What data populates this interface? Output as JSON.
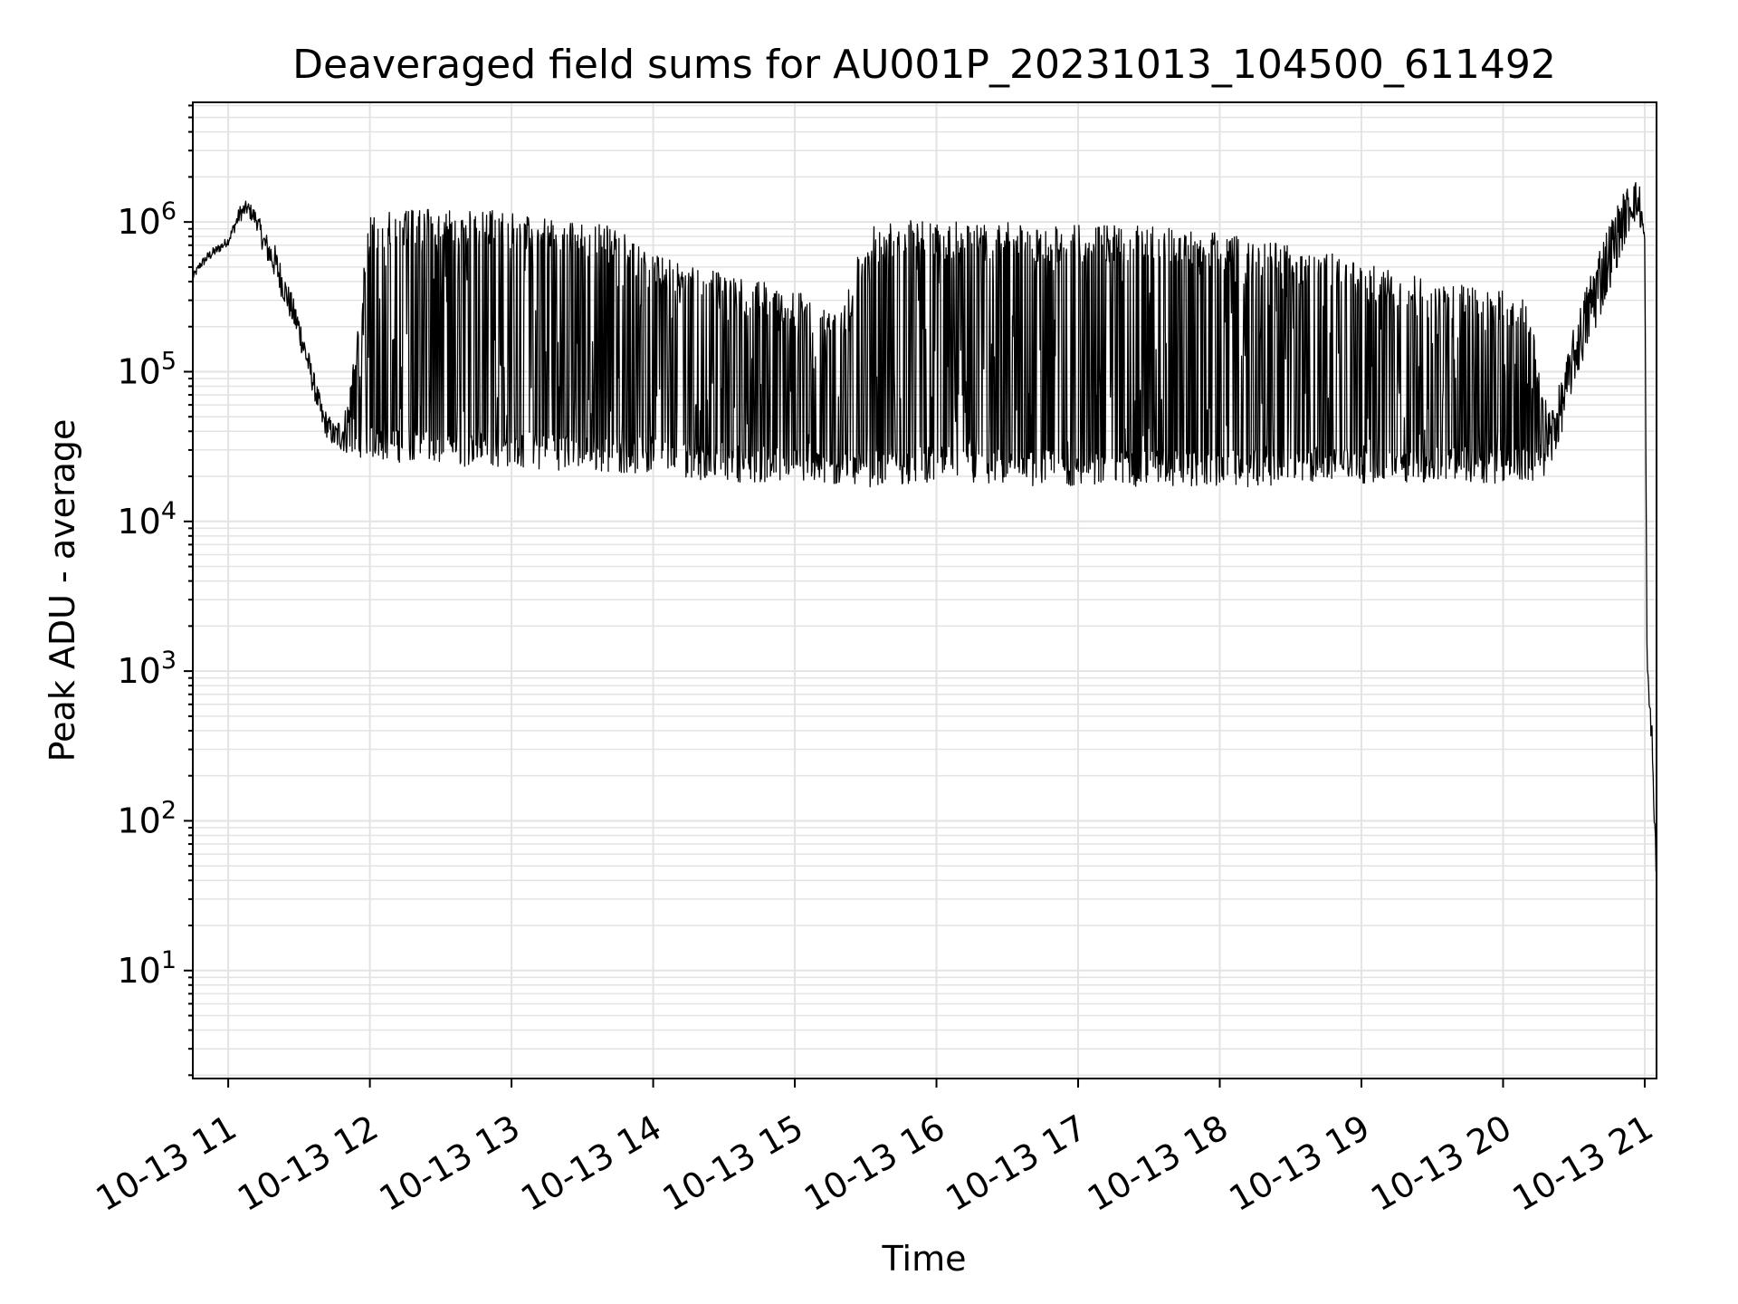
{
  "chart_data": {
    "type": "line",
    "title": "Deaveraged field sums for AU001P_20231013_104500_611492",
    "xlabel": "Time",
    "ylabel": "Peak ADU - average",
    "x_scale": "time",
    "y_scale": "log",
    "xlim": [
      "10-13 10:45",
      "10-13 21:05"
    ],
    "ylim": [
      1.9,
      6300000
    ],
    "x_ticks": [
      "10-13 11",
      "10-13 12",
      "10-13 13",
      "10-13 14",
      "10-13 15",
      "10-13 16",
      "10-13 17",
      "10-13 18",
      "10-13 19",
      "10-13 20",
      "10-13 21"
    ],
    "y_ticks": [
      {
        "base": "10",
        "exp": "1"
      },
      {
        "base": "10",
        "exp": "2"
      },
      {
        "base": "10",
        "exp": "3"
      },
      {
        "base": "10",
        "exp": "4"
      },
      {
        "base": "10",
        "exp": "5"
      },
      {
        "base": "10",
        "exp": "6"
      }
    ],
    "grid": true,
    "line_color": "#000000",
    "series": [
      {
        "x": [
          "10-13 10:45",
          "10-13 10:48",
          "10-13 10:52",
          "10-13 10:55",
          "10-13 11:00",
          "10-13 11:05",
          "10-13 11:08",
          "10-13 11:12",
          "10-13 11:15",
          "10-13 11:20",
          "10-13 11:25",
          "10-13 11:30",
          "10-13 11:35",
          "10-13 11:40",
          "10-13 11:45",
          "10-13 11:50",
          "10-13 12:00",
          "10-13 12:10",
          "10-13 12:20",
          "10-13 12:30",
          "10-13 12:40",
          "10-13 12:50",
          "10-13 13:00",
          "10-13 13:10",
          "10-13 13:20",
          "10-13 13:30",
          "10-13 13:40",
          "10-13 13:50",
          "10-13 14:00",
          "10-13 14:10",
          "10-13 14:20",
          "10-13 14:30",
          "10-13 14:40",
          "10-13 14:50",
          "10-13 15:00",
          "10-13 15:10",
          "10-13 15:20",
          "10-13 15:30",
          "10-13 15:40",
          "10-13 15:50",
          "10-13 16:00",
          "10-13 16:10",
          "10-13 16:20",
          "10-13 16:30",
          "10-13 16:40",
          "10-13 16:50",
          "10-13 17:00",
          "10-13 17:10",
          "10-13 17:20",
          "10-13 17:30",
          "10-13 17:40",
          "10-13 17:50",
          "10-13 18:00",
          "10-13 18:10",
          "10-13 18:20",
          "10-13 18:30",
          "10-13 18:40",
          "10-13 18:50",
          "10-13 19:00",
          "10-13 19:10",
          "10-13 19:20",
          "10-13 19:30",
          "10-13 19:40",
          "10-13 19:50",
          "10-13 20:00",
          "10-13 20:10",
          "10-13 20:20",
          "10-13 20:25",
          "10-13 20:30",
          "10-13 20:40",
          "10-13 20:50",
          "10-13 20:55",
          "10-13 20:58",
          "10-13 21:00",
          "10-13 21:01",
          "10-13 21:02",
          "10-13 21:03",
          "10-13 21:04",
          "10-13 21:05"
        ],
        "low": [
          400000,
          480000,
          550000,
          600000,
          700000,
          1000000,
          1100000,
          900000,
          600000,
          400000,
          250000,
          150000,
          80000,
          40000,
          30000,
          28000,
          26000,
          25000,
          24000,
          24000,
          23000,
          23000,
          23000,
          22000,
          22000,
          22000,
          21000,
          21000,
          20000,
          20000,
          19000,
          19000,
          18000,
          18000,
          18000,
          17000,
          17000,
          17000,
          17000,
          18000,
          18000,
          18000,
          17000,
          17000,
          17000,
          17000,
          17000,
          17000,
          17000,
          17000,
          17000,
          17000,
          17000,
          17000,
          17000,
          17000,
          18000,
          18000,
          18000,
          18000,
          18000,
          18000,
          18000,
          18000,
          18000,
          18000,
          20000,
          40000,
          80000,
          200000,
          600000,
          1000000,
          900000,
          600000,
          1000,
          500,
          300,
          80,
          35
        ],
        "high": [
          450000,
          550000,
          650000,
          700000,
          800000,
          1300000,
          1400000,
          1200000,
          900000,
          700000,
          400000,
          250000,
          120000,
          60000,
          45000,
          60000,
          1100000,
          1200000,
          1200000,
          1250000,
          1200000,
          1200000,
          1150000,
          1100000,
          1050000,
          1000000,
          950000,
          800000,
          600000,
          550000,
          500000,
          450000,
          400000,
          400000,
          350000,
          300000,
          250000,
          900000,
          1000000,
          1050000,
          1000000,
          1000000,
          1000000,
          1000000,
          950000,
          950000,
          950000,
          950000,
          950000,
          950000,
          900000,
          900000,
          850000,
          800000,
          750000,
          700000,
          650000,
          600000,
          550000,
          500000,
          450000,
          400000,
          400000,
          350000,
          350000,
          300000,
          60000,
          90000,
          200000,
          700000,
          1500000,
          2000000,
          1800000,
          900000,
          1200,
          700,
          500,
          150,
          60
        ]
      }
    ]
  }
}
